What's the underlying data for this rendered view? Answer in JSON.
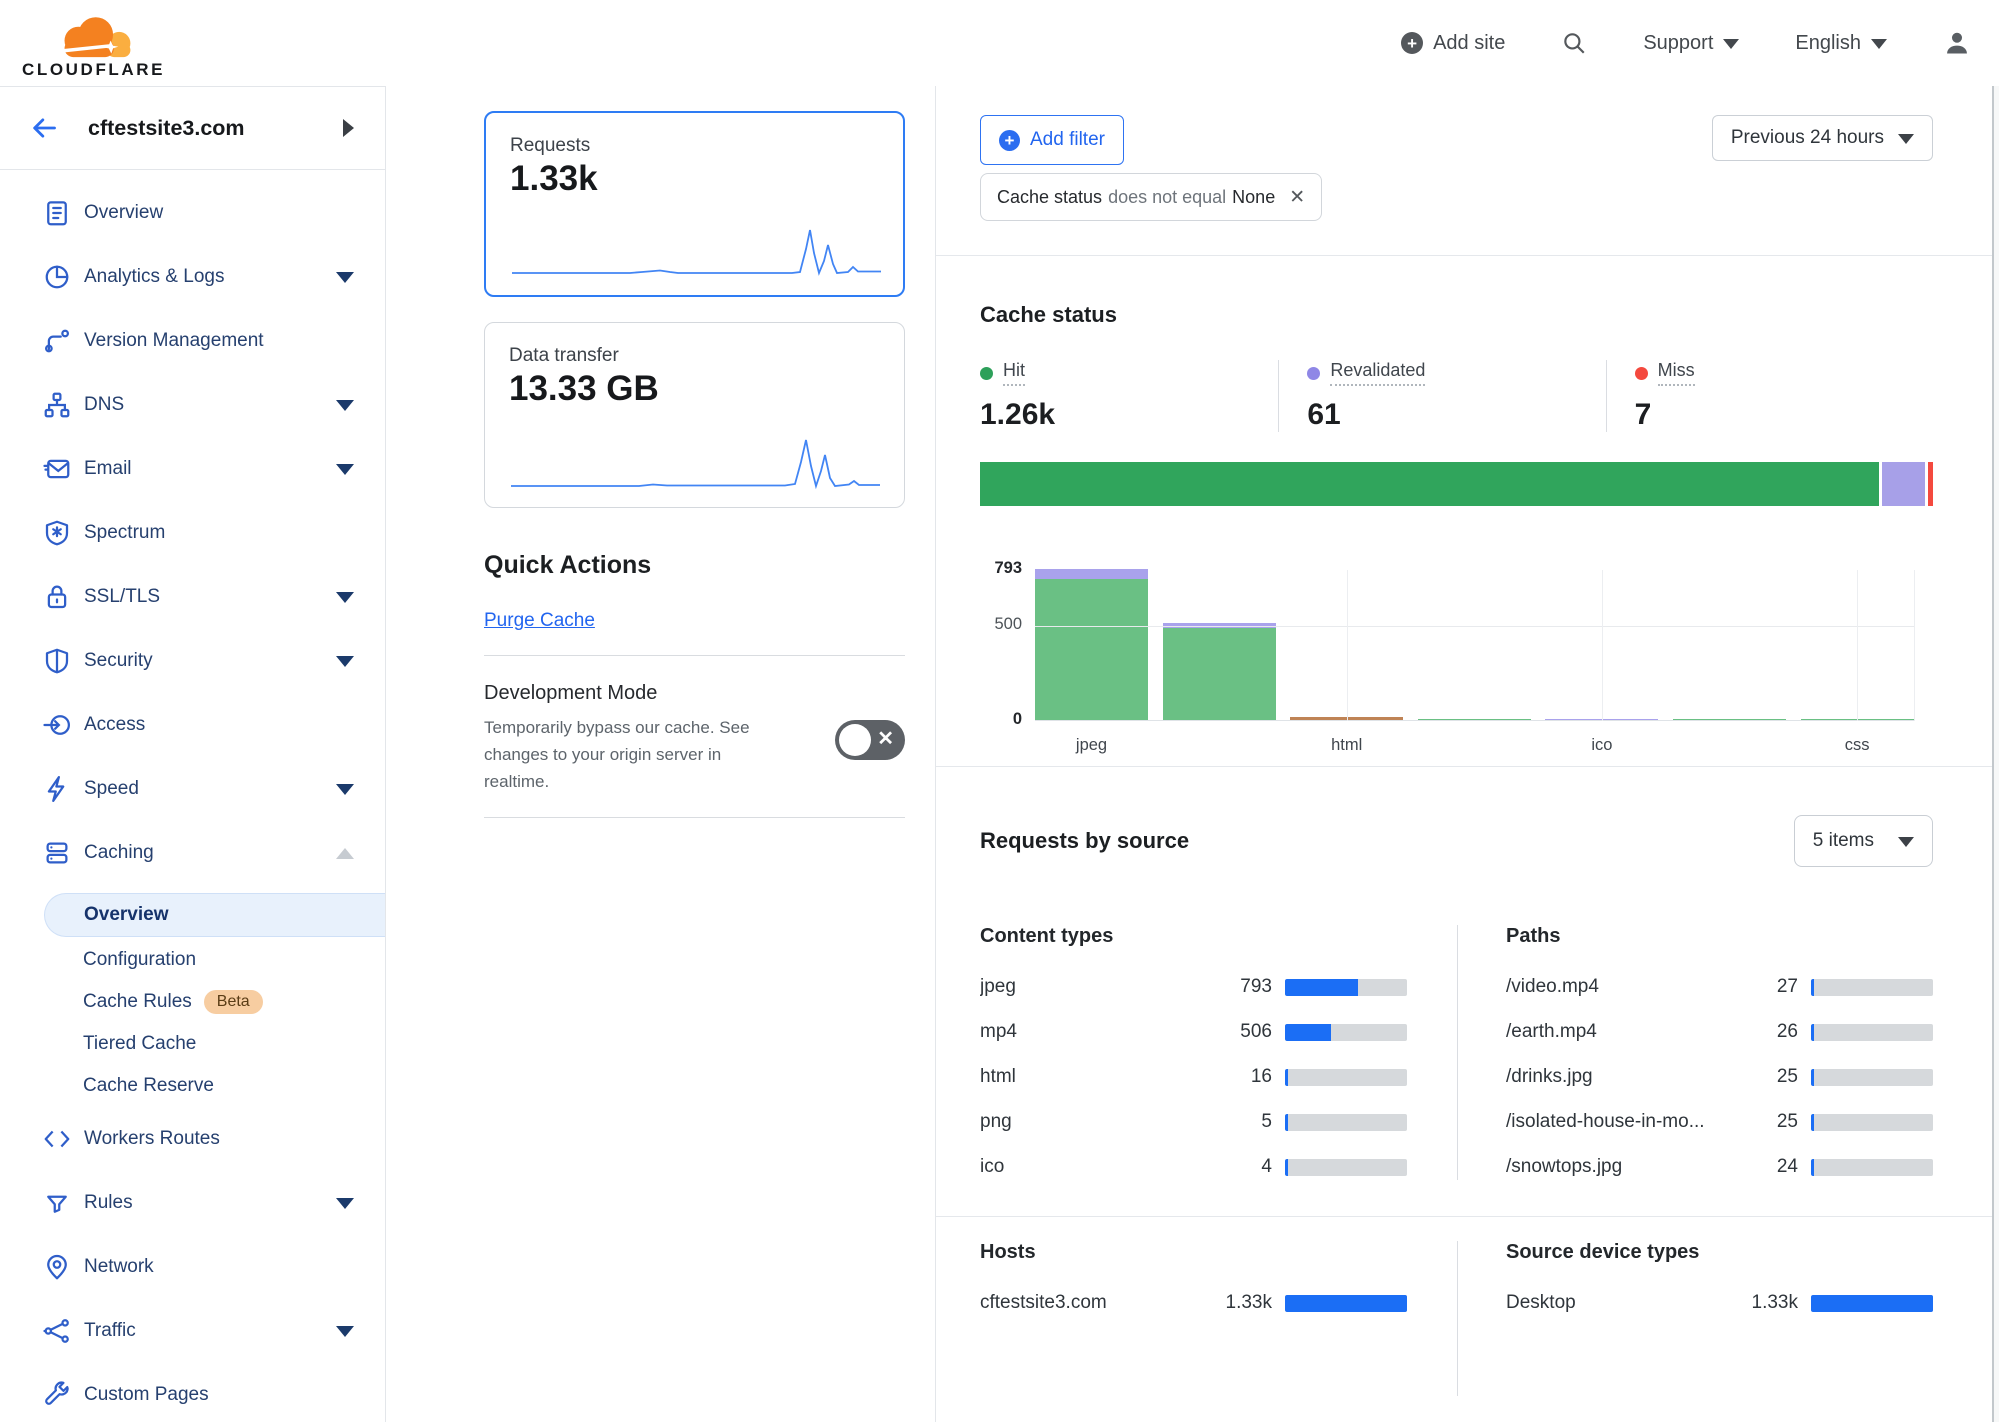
{
  "header": {
    "brand": "CLOUDFLARE",
    "add_site": "Add site",
    "support": "Support",
    "language": "English"
  },
  "sidebar": {
    "site": "cftestsite3.com",
    "items": [
      {
        "label": "Overview"
      },
      {
        "label": "Analytics & Logs"
      },
      {
        "label": "Version Management"
      },
      {
        "label": "DNS"
      },
      {
        "label": "Email"
      },
      {
        "label": "Spectrum"
      },
      {
        "label": "SSL/TLS"
      },
      {
        "label": "Security"
      },
      {
        "label": "Access"
      },
      {
        "label": "Speed"
      },
      {
        "label": "Caching"
      }
    ],
    "caching_submenu": [
      {
        "label": "Overview",
        "active": true
      },
      {
        "label": "Configuration"
      },
      {
        "label": "Cache Rules",
        "badge": "Beta"
      },
      {
        "label": "Tiered Cache"
      },
      {
        "label": "Cache Reserve"
      }
    ],
    "items_bottom": [
      {
        "label": "Workers Routes"
      },
      {
        "label": "Rules"
      },
      {
        "label": "Network"
      },
      {
        "label": "Traffic"
      },
      {
        "label": "Custom Pages"
      }
    ]
  },
  "overview_cards": [
    {
      "label": "Requests",
      "value": "1.33k"
    },
    {
      "label": "Data transfer",
      "value": "13.33 GB"
    }
  ],
  "quick_actions": {
    "title": "Quick Actions",
    "purge_label": "Purge Cache",
    "dev_mode": {
      "title": "Development Mode",
      "description": "Temporarily bypass our cache. See changes to your origin server in realtime.",
      "state": "off"
    }
  },
  "filters": {
    "add_filter_label": "Add filter",
    "chip": {
      "field": "Cache status",
      "operator": "does not equal",
      "value": "None"
    },
    "time_range": "Previous 24 hours"
  },
  "cache_status": {
    "title": "Cache status",
    "stats": [
      {
        "label": "Hit",
        "value": "1.26k",
        "color": "#2da05a"
      },
      {
        "label": "Revalidated",
        "value": "61",
        "color": "#8f87e6"
      },
      {
        "label": "Miss",
        "value": "7",
        "color": "#f4493e"
      }
    ]
  },
  "requests_by_source": {
    "title": "Requests by source",
    "items_dropdown": "5 items",
    "content_types": {
      "title": "Content types",
      "rows": [
        {
          "label": "jpeg",
          "value": "793",
          "pct": 59.7
        },
        {
          "label": "mp4",
          "value": "506",
          "pct": 38.1
        },
        {
          "label": "html",
          "value": "16",
          "pct": 1.2
        },
        {
          "label": "png",
          "value": "5",
          "pct": 0.4
        },
        {
          "label": "ico",
          "value": "4",
          "pct": 0.3
        }
      ]
    },
    "paths": {
      "title": "Paths",
      "rows": [
        {
          "label": "/video.mp4",
          "value": "27",
          "pct": 2.0
        },
        {
          "label": "/earth.mp4",
          "value": "26",
          "pct": 2.0
        },
        {
          "label": "/drinks.jpg",
          "value": "25",
          "pct": 1.9
        },
        {
          "label": "/isolated-house-in-mo...",
          "value": "25",
          "pct": 1.9
        },
        {
          "label": "/snowtops.jpg",
          "value": "24",
          "pct": 1.8
        }
      ]
    },
    "hosts": {
      "title": "Hosts",
      "rows": [
        {
          "label": "cftestsite3.com",
          "value": "1.33k",
          "pct": 100
        }
      ]
    },
    "device_types": {
      "title": "Source device types",
      "rows": [
        {
          "label": "Desktop",
          "value": "1.33k",
          "pct": 100
        }
      ]
    }
  },
  "chart_data": [
    {
      "type": "bar",
      "title": "Cache status by content type",
      "stacked": true,
      "ylim": [
        0,
        793
      ],
      "yticks": [
        "0",
        "500",
        "793"
      ],
      "x_tick_labels": [
        "jpeg",
        "html",
        "ico",
        "css"
      ],
      "grid": true,
      "legend_position": "none",
      "colors": {
        "hit": "#6ac084",
        "revalidated": "#a9a2ec",
        "expired": "#bf8355"
      },
      "bars": [
        {
          "label": "jpeg",
          "total": 793,
          "segments": [
            {
              "name": "revalidated",
              "value": 55
            },
            {
              "name": "hit",
              "value": 738
            }
          ]
        },
        {
          "label": "",
          "total": 506,
          "segments": [
            {
              "name": "revalidated",
              "value": 25
            },
            {
              "name": "hit",
              "value": 481
            }
          ]
        },
        {
          "label": "html",
          "total": 16,
          "segments": [
            {
              "name": "expired",
              "value": 16
            }
          ]
        },
        {
          "label": "",
          "total": 5,
          "segments": [
            {
              "name": "hit",
              "value": 5
            }
          ]
        },
        {
          "label": "ico",
          "total": 4,
          "segments": [
            {
              "name": "revalidated",
              "value": 4
            }
          ]
        },
        {
          "label": "",
          "total": 2,
          "segments": [
            {
              "name": "hit",
              "value": 2
            }
          ]
        },
        {
          "label": "css",
          "total": 1,
          "segments": [
            {
              "name": "hit",
              "value": 1
            }
          ]
        }
      ]
    },
    {
      "type": "stacked-bar",
      "title": "Cache status totals",
      "segments": [
        {
          "name": "Hit",
          "value": 1260,
          "pct": 94.9,
          "color": "#30a55c"
        },
        {
          "name": "Revalidated",
          "value": 61,
          "pct": 4.6,
          "color": "#a7a0e8"
        },
        {
          "name": "Miss",
          "value": 7,
          "pct": 0.5,
          "color": "#f4493e"
        }
      ]
    }
  ]
}
